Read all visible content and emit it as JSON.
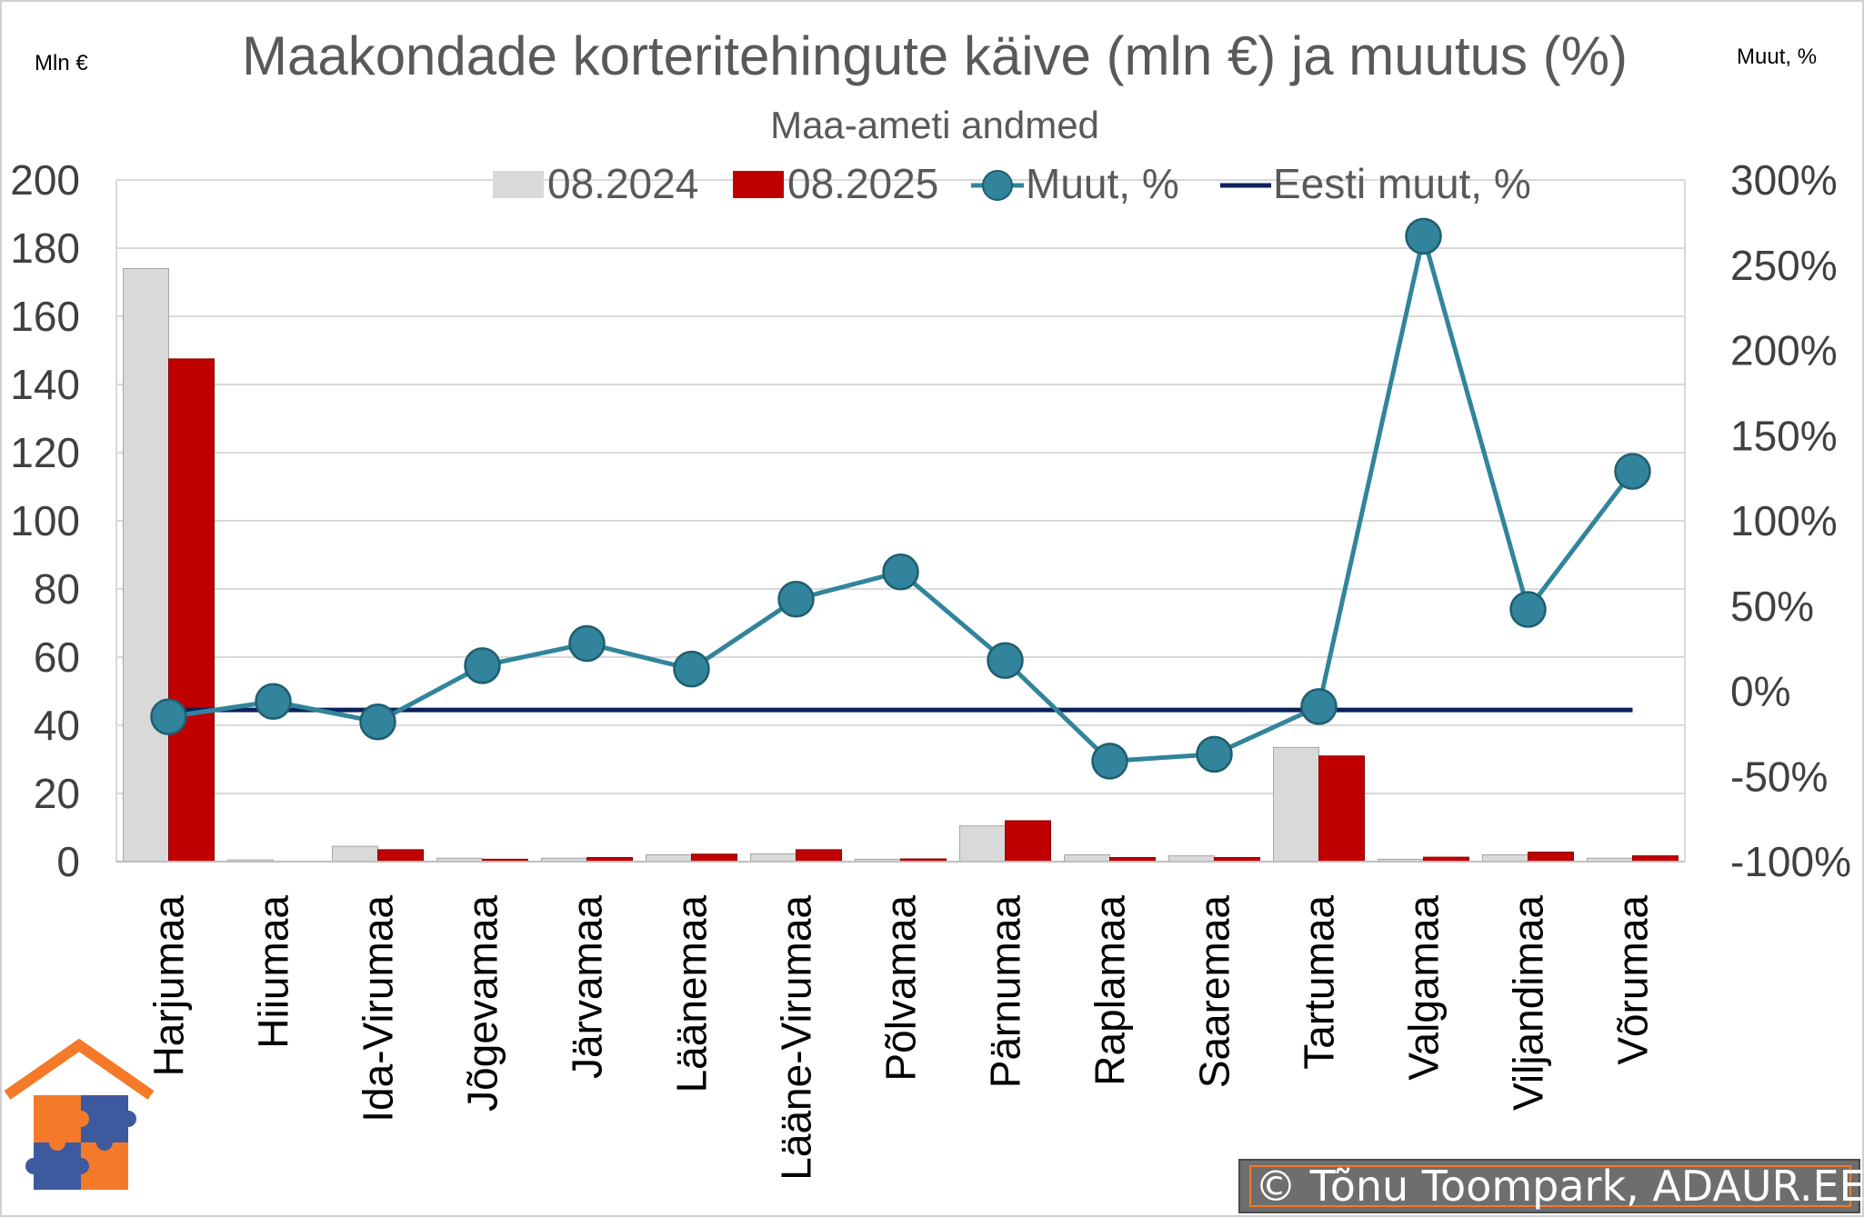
{
  "chart_data": {
    "type": "bar",
    "title": "Maakondade korteritehingute käive (mln €) ja muutus (%)",
    "subtitle": "Maa-ameti andmed",
    "y_left_label": "Mln €",
    "y_right_label": "Muut, %",
    "ylim_left": [
      0,
      200
    ],
    "ylim_right": [
      -100,
      300
    ],
    "y_left_ticks": [
      "0",
      "20",
      "40",
      "60",
      "80",
      "100",
      "120",
      "140",
      "160",
      "180",
      "200"
    ],
    "y_right_ticks": [
      "-100%",
      "-50%",
      "0%",
      "50%",
      "100%",
      "150%",
      "200%",
      "250%",
      "300%"
    ],
    "grid": true,
    "legend_position": "top",
    "categories": [
      "Harjumaa",
      "Hiiumaa",
      "Ida-Virumaa",
      "Jõgevamaa",
      "Järvamaa",
      "Läänemaa",
      "Lääne-Virumaa",
      "Põlvamaa",
      "Pärnumaa",
      "Raplamaa",
      "Saaremaa",
      "Tartumaa",
      "Valgamaa",
      "Viljandimaa",
      "Võrumaa"
    ],
    "series": [
      {
        "name": "08.2024",
        "kind": "bar",
        "axis": "left",
        "color": "#d9d9d9",
        "values": [
          174,
          0.5,
          4.5,
          1,
          1,
          2,
          2.3,
          0.7,
          10.5,
          2,
          1.7,
          33.5,
          0.7,
          2,
          1
        ]
      },
      {
        "name": "08.2025",
        "kind": "bar",
        "axis": "left",
        "color": "#c00000",
        "values": [
          147.5,
          0,
          3.5,
          0.7,
          1.2,
          2.2,
          3.5,
          0.8,
          12,
          1.2,
          1.2,
          31,
          1.3,
          2.8,
          1.7
        ]
      },
      {
        "name": "Muut, %",
        "kind": "line-marker",
        "axis": "right",
        "color": "#31849b",
        "values": [
          -15,
          -6,
          -18,
          15,
          28,
          13,
          54,
          70,
          18,
          -41,
          -37,
          -9,
          267,
          48,
          129
        ]
      },
      {
        "name": "Eesti muut, %",
        "kind": "line",
        "axis": "right",
        "color": "#0d1f5c",
        "values": [
          -11,
          -11,
          -11,
          -11,
          -11,
          -11,
          -11,
          -11,
          -11,
          -11,
          -11,
          -11,
          -11,
          -11,
          -11
        ]
      }
    ]
  },
  "credit": "© Tõnu Toompark, ADAUR.EE",
  "logo": {
    "icon": "house-puzzle-logo",
    "colors": [
      "#f47a2a",
      "#3d5a9e"
    ]
  }
}
